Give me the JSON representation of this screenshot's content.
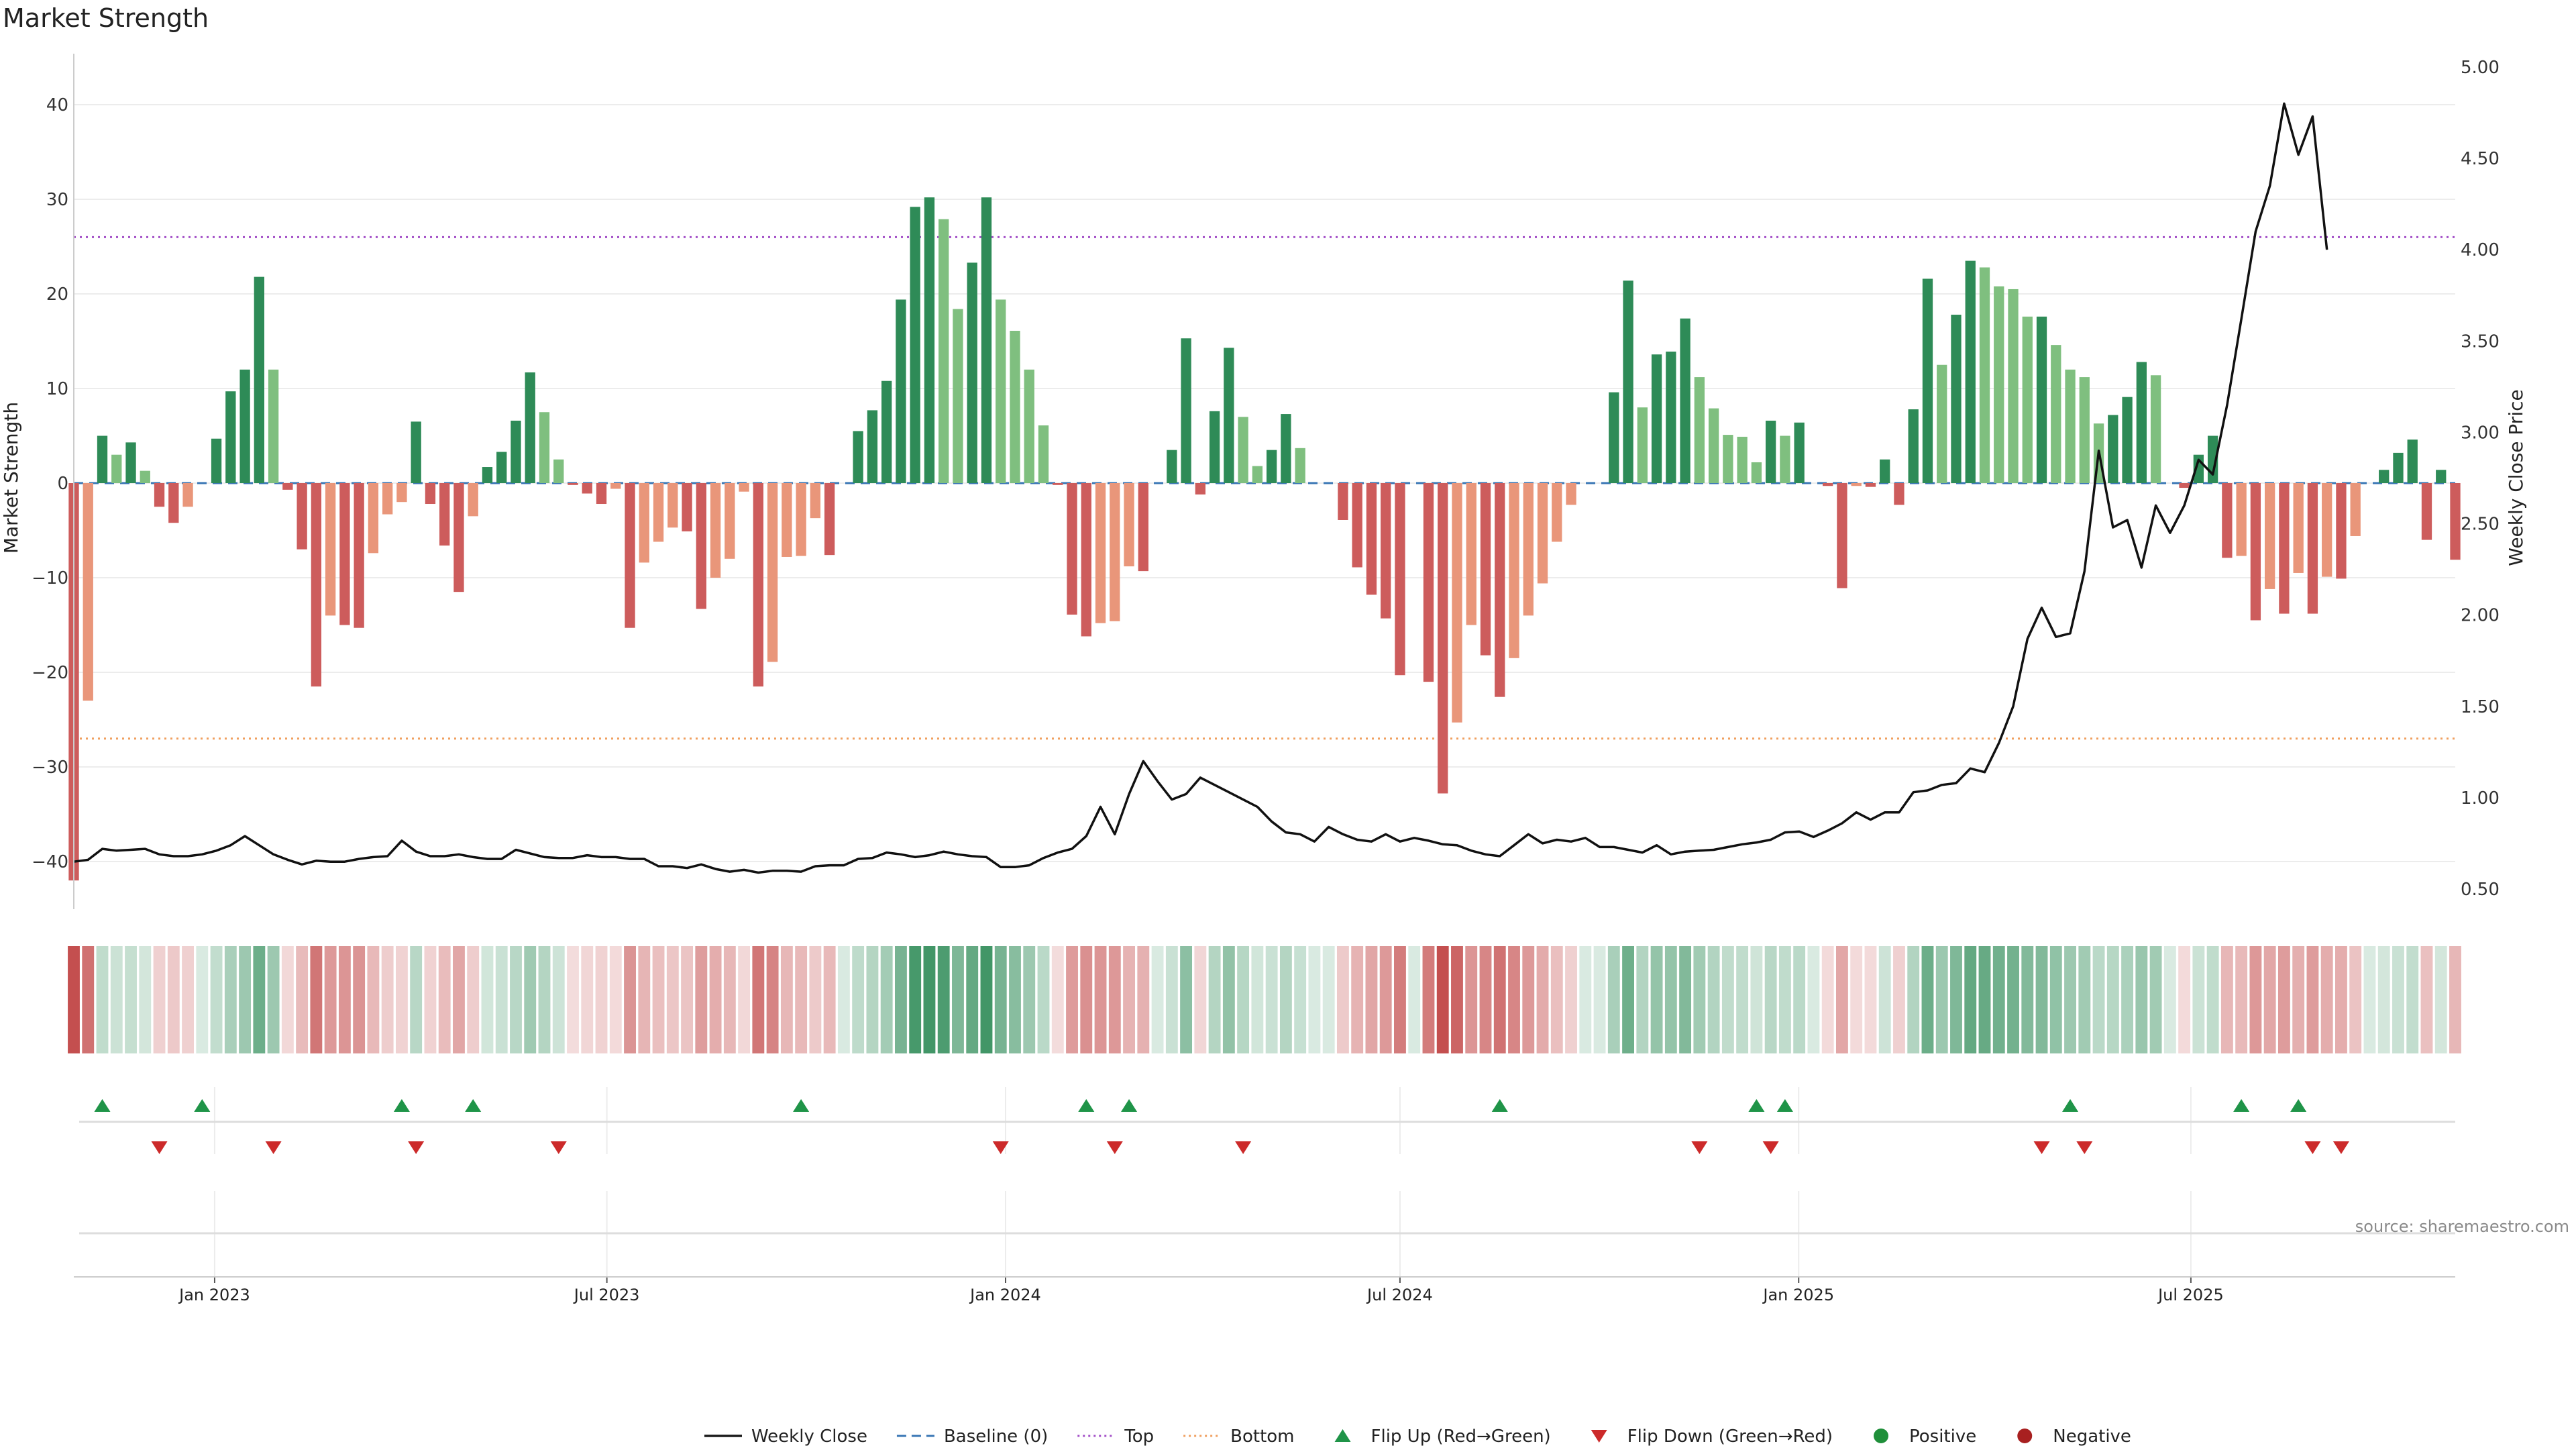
{
  "chart_data": {
    "type": "bar",
    "title": "Market Strength",
    "ylabel_left": "Market Strength",
    "ylabel_right": "Weekly Close Price",
    "source": "source: sharemaestro.com",
    "grid": true,
    "ylim_left": [
      -44,
      45
    ],
    "ylim_right": [
      0.4,
      5.05
    ],
    "yticks_left": [
      "40",
      "30",
      "20",
      "10",
      "0",
      "−10",
      "−20",
      "−30",
      "−40"
    ],
    "yticks_left_values": [
      40,
      30,
      20,
      10,
      0,
      -10,
      -20,
      -30,
      -40
    ],
    "yticks_right": [
      "5.00",
      "4.50",
      "4.00",
      "3.50",
      "3.00",
      "2.50",
      "2.00",
      "1.50",
      "1.00",
      "0.50"
    ],
    "yticks_right_values": [
      5.0,
      4.5,
      4.0,
      3.5,
      3.0,
      2.5,
      2.0,
      1.5,
      1.0,
      0.5
    ],
    "top_line": 26,
    "bottom_line": -27,
    "x_start": "2022-10-28",
    "x_end": "2025-10-31",
    "xticks": [
      {
        "date": "2023-01-01",
        "label": "Jan 2023"
      },
      {
        "date": "2023-07-01",
        "label": "Jul 2023"
      },
      {
        "date": "2024-01-01",
        "label": "Jan 2024"
      },
      {
        "date": "2024-07-01",
        "label": "Jul 2024"
      },
      {
        "date": "2025-01-01",
        "label": "Jan 2025"
      },
      {
        "date": "2025-07-01",
        "label": "Jul 2025"
      }
    ],
    "strength": [
      -42,
      -23,
      5,
      3,
      4.3,
      1.3,
      -2.5,
      -4.2,
      -2.5,
      0,
      4.7,
      9.7,
      12,
      21.8,
      12,
      -0.7,
      -7,
      -21.5,
      -14,
      -15,
      -15.3,
      -7.4,
      -3.3,
      -2,
      6.5,
      -2.2,
      -6.6,
      -11.5,
      -3.5,
      1.7,
      3.3,
      6.6,
      11.7,
      7.5,
      2.5,
      -0.2,
      -1.1,
      -2.2,
      -0.6,
      -15.3,
      -8.4,
      -6.2,
      -4.7,
      -5.1,
      -13.3,
      -10,
      -8,
      -0.9,
      -21.5,
      -18.9,
      -7.8,
      -7.7,
      -3.7,
      -7.6,
      0,
      5.5,
      7.7,
      10.8,
      19.4,
      29.2,
      30.2,
      27.9,
      18.4,
      23.3,
      30.2,
      19.4,
      16.1,
      12,
      6.1,
      -0.2,
      -13.9,
      -16.2,
      -14.8,
      -14.6,
      -8.8,
      -9.3,
      0,
      3.5,
      15.3,
      -1.2,
      7.6,
      14.3,
      7,
      1.8,
      3.5,
      7.3,
      3.7,
      0,
      0,
      -3.9,
      -8.9,
      -11.8,
      -14.3,
      -20.3,
      0,
      -21,
      -32.8,
      -25.3,
      -15,
      -18.2,
      -22.6,
      -18.5,
      -14,
      -10.6,
      -6.2,
      -2.3,
      0,
      0,
      9.6,
      21.4,
      8,
      13.6,
      13.9,
      17.4,
      11.2,
      7.9,
      5.1,
      4.9,
      2.2,
      6.6,
      5,
      6.4,
      0,
      -0.3,
      -11.1,
      -0.3,
      -0.4,
      2.5,
      -2.3,
      7.8,
      21.6,
      12.5,
      17.8,
      23.5,
      22.8,
      20.8,
      20.5,
      17.6,
      17.6,
      14.6,
      12,
      11.2,
      6.3,
      7.2,
      9.1,
      12.8,
      11.4,
      0,
      -0.5,
      3,
      5,
      -7.9,
      -7.7,
      -14.5,
      -11.2,
      -13.8,
      -9.5,
      -13.8,
      -9.9,
      -10.1,
      -5.6,
      0,
      1.4,
      3.2,
      4.6,
      -6,
      1.4,
      -8.1
    ],
    "close": [
      0.65,
      0.66,
      0.72,
      0.71,
      0.715,
      0.72,
      0.69,
      0.68,
      0.68,
      0.69,
      0.71,
      0.74,
      0.79,
      0.74,
      0.69,
      0.66,
      0.635,
      0.655,
      0.65,
      0.65,
      0.665,
      0.675,
      0.68,
      0.765,
      0.705,
      0.68,
      0.68,
      0.69,
      0.675,
      0.665,
      0.665,
      0.715,
      0.695,
      0.675,
      0.67,
      0.67,
      0.685,
      0.675,
      0.675,
      0.665,
      0.665,
      0.625,
      0.625,
      0.615,
      0.635,
      0.61,
      0.595,
      0.605,
      0.59,
      0.6,
      0.6,
      0.595,
      0.625,
      0.63,
      0.63,
      0.665,
      0.67,
      0.7,
      0.69,
      0.675,
      0.685,
      0.705,
      0.69,
      0.68,
      0.675,
      0.62,
      0.62,
      0.63,
      0.67,
      0.7,
      0.72,
      0.79,
      0.95,
      0.8,
      1.02,
      1.2,
      1.09,
      0.99,
      1.02,
      1.11,
      1.07,
      1.03,
      0.99,
      0.95,
      0.87,
      0.81,
      0.8,
      0.76,
      0.84,
      0.8,
      0.77,
      0.76,
      0.8,
      0.76,
      0.78,
      0.765,
      0.745,
      0.74,
      0.71,
      0.69,
      0.68,
      0.74,
      0.8,
      0.75,
      0.77,
      0.76,
      0.78,
      0.73,
      0.73,
      0.715,
      0.7,
      0.74,
      0.69,
      0.705,
      0.71,
      0.715,
      0.73,
      0.745,
      0.755,
      0.77,
      0.81,
      0.815,
      0.785,
      0.82,
      0.86,
      0.92,
      0.88,
      0.92,
      0.92,
      1.03,
      1.04,
      1.07,
      1.08,
      1.16,
      1.14,
      1.3,
      1.5,
      1.87,
      2.04,
      1.88,
      1.9,
      2.24,
      2.9,
      2.48,
      2.52,
      2.26,
      2.6,
      2.45,
      2.6,
      2.85,
      2.77,
      3.15,
      3.62,
      4.1,
      4.35,
      4.8,
      4.52,
      4.73,
      4.0
    ],
    "flip_up_weeks": [
      2,
      9,
      23,
      28,
      51,
      71,
      74,
      100,
      118,
      120,
      140,
      152,
      156
    ],
    "flip_down_weeks": [
      6,
      14,
      24,
      34,
      65,
      73,
      82,
      114,
      119,
      138,
      141,
      157,
      159
    ],
    "legend": {
      "position": "bottom",
      "items": [
        {
          "type": "line-solid",
          "label": "Weekly Close",
          "color": "#1a1a1a"
        },
        {
          "type": "line-dash",
          "label": "Baseline (0)",
          "color": "#3a77b5"
        },
        {
          "type": "line-dot",
          "label": "Top",
          "color": "#a450c8"
        },
        {
          "type": "line-dot",
          "label": "Bottom",
          "color": "#f0a060"
        },
        {
          "type": "triangle-up",
          "label": "Flip Up (Red→Green)",
          "color": "#1f9448"
        },
        {
          "type": "triangle-down",
          "label": "Flip Down (Green→Red)",
          "color": "#cc2a2a"
        },
        {
          "type": "dot",
          "label": "Positive",
          "color": "#1f8f3a"
        },
        {
          "type": "dot",
          "label": "Negative",
          "color": "#a82020"
        }
      ]
    },
    "colors": {
      "pos_strong": "#2e8b57",
      "pos_weak": "#7fbf7f",
      "neg_strong": "#cd5c5c",
      "neg_weak": "#e9967a",
      "baseline": "#3a77b5",
      "top": "#a450c8",
      "bottom": "#f0a060",
      "price": "#111111",
      "flip_up": "#1f9448",
      "flip_down": "#cc2a2a",
      "grid": "#ececec",
      "axis": "#cccccc"
    }
  }
}
